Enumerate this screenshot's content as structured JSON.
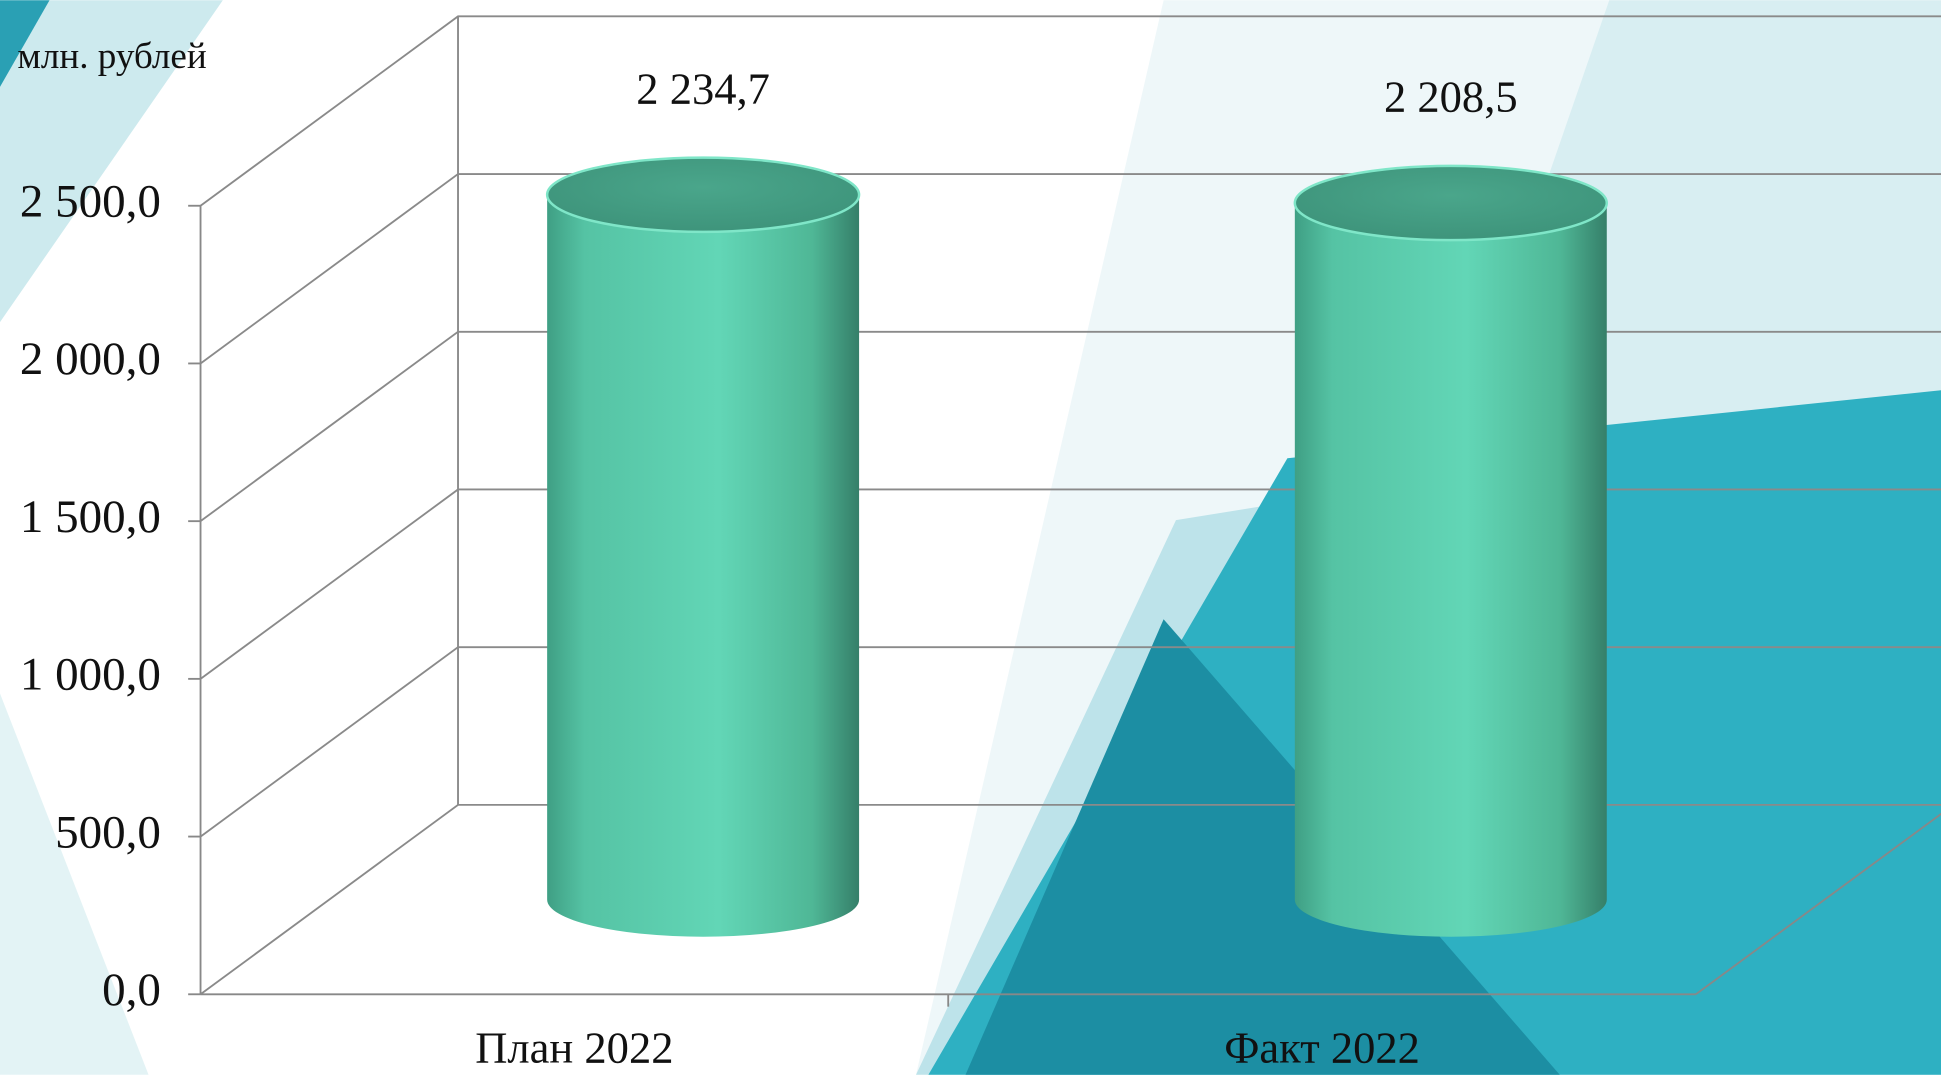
{
  "chart_data": {
    "type": "bar3d",
    "y_axis_label": "млн. рублей",
    "categories": [
      "План 2022",
      "Факт 2022"
    ],
    "values": [
      2234.7,
      2208.5
    ],
    "value_labels": [
      "2 234,7",
      "2 208,5"
    ],
    "color": "#5fd4b4",
    "ylim": [
      0,
      2500
    ],
    "yticks": [
      {
        "value": 0,
        "label": "0,0"
      },
      {
        "value": 500,
        "label": "500,0"
      },
      {
        "value": 1000,
        "label": "1 000,0"
      },
      {
        "value": 1500,
        "label": "1 500,0"
      },
      {
        "value": 2000,
        "label": "2 000,0"
      },
      {
        "value": 2500,
        "label": "2 500,0"
      }
    ],
    "grid": true
  }
}
